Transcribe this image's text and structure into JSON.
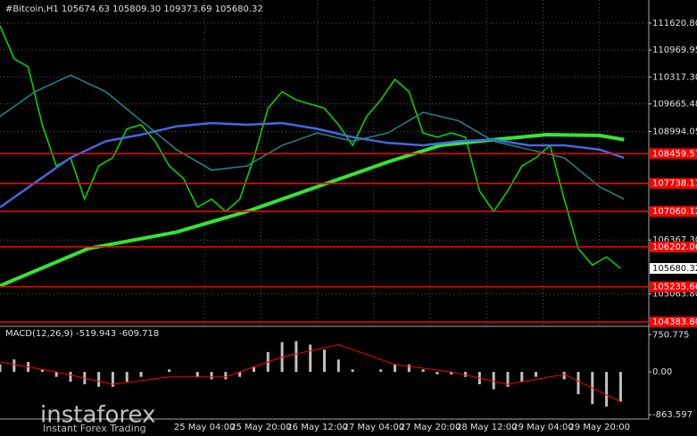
{
  "chart_data": [
    {
      "type": "line",
      "title": "#Bitcoin,H1  105674.63 105809.30 109373.69 105680.32",
      "xlim": [
        0,
        184
      ],
      "xticks": [
        {
          "value": 58,
          "label": "25 May 04:00"
        },
        {
          "value": 74,
          "label": "25 May 20:00"
        },
        {
          "value": 90,
          "label": "26 May 12:00"
        },
        {
          "value": 106,
          "label": "27 May 04:00"
        },
        {
          "value": 122,
          "label": "27 May 20:00"
        },
        {
          "value": 138,
          "label": "28 May 12:00"
        },
        {
          "value": 154,
          "label": "29 May 04:00"
        },
        {
          "value": 170,
          "label": "29 May 20:00"
        }
      ],
      "ylim": [
        104300,
        112180
      ],
      "yticks": [
        {
          "value": 111620.8,
          "label": "111620.80"
        },
        110969.95,
        {
          "value": 110317.3,
          "label": "110317.30"
        },
        109665.48,
        108994.05,
        {
          "value": 106367.3,
          "label": "106367.30"
        },
        {
          "value": 105063.8,
          "label": "105063.80"
        }
      ],
      "levels": [
        108459.57,
        107738.11,
        107060.12,
        106202.06,
        105235.66,
        {
          "value": 104383.8,
          "label": "104383.80"
        }
      ],
      "level_color": "#ff0000",
      "last_price": 105680.32,
      "grid": true,
      "series": [
        {
          "color": "#00e000",
          "line_width": 1.5,
          "x": [
            0,
            4,
            8,
            12,
            16,
            20,
            24,
            28,
            32,
            36,
            40,
            44,
            48,
            52,
            56,
            60,
            64,
            68,
            72,
            76,
            80,
            84,
            88,
            92,
            96,
            100,
            104,
            108,
            112,
            116,
            120,
            124,
            128,
            132,
            136,
            140,
            144,
            148,
            152,
            156,
            160,
            164,
            168,
            172,
            176
          ],
          "values": [
            111560,
            110760,
            110560,
            109160,
            108160,
            108360,
            107360,
            108160,
            108360,
            109060,
            109160,
            108760,
            108160,
            107860,
            107160,
            107360,
            107060,
            107360,
            108360,
            109560,
            109960,
            109760,
            109660,
            109560,
            109160,
            108660,
            109360,
            109760,
            110260,
            109960,
            108960,
            108860,
            108960,
            108860,
            107560,
            107060,
            107560,
            108160,
            108360,
            108660,
            107360,
            106160,
            105760,
            105960,
            105680
          ]
        },
        {
          "color": "#32e632",
          "line_width": 4,
          "x": [
            0,
            25,
            50,
            70,
            90,
            110,
            125,
            140,
            155,
            170,
            177
          ],
          "values": [
            105260,
            106160,
            106560,
            107060,
            107660,
            108260,
            108660,
            108800,
            108920,
            108900,
            108800
          ]
        },
        {
          "color": "#4169e1",
          "line_width": 2.5,
          "x": [
            0,
            10,
            20,
            30,
            40,
            50,
            60,
            70,
            80,
            90,
            100,
            110,
            120,
            130,
            140,
            150,
            160,
            170,
            177
          ],
          "values": [
            107160,
            107760,
            108360,
            108760,
            108920,
            109120,
            109200,
            109160,
            109200,
            109060,
            108860,
            108720,
            108660,
            108760,
            108800,
            108660,
            108660,
            108560,
            108360
          ]
        },
        {
          "color": "#1f8a8a",
          "line_width": 1.5,
          "x": [
            0,
            10,
            20,
            30,
            40,
            50,
            60,
            70,
            80,
            90,
            100,
            110,
            120,
            130,
            140,
            150,
            160,
            170,
            177
          ],
          "values": [
            109360,
            109960,
            110360,
            109960,
            109260,
            108560,
            108060,
            108160,
            108660,
            108960,
            108760,
            108960,
            109460,
            109260,
            108760,
            108560,
            108360,
            107660,
            107360
          ]
        }
      ]
    },
    {
      "type": "bar",
      "title": "MACD(12,26,9) -519.943 -609.718",
      "color": "#c0c0c0",
      "x": [
        0,
        4,
        8,
        12,
        16,
        20,
        24,
        28,
        32,
        36,
        40,
        44,
        48,
        52,
        56,
        60,
        64,
        68,
        72,
        76,
        80,
        84,
        88,
        92,
        96,
        100,
        104,
        108,
        112,
        116,
        120,
        124,
        128,
        132,
        136,
        140,
        144,
        148,
        152,
        156,
        160,
        164,
        168,
        172,
        176
      ],
      "values": [
        150,
        250,
        200,
        50,
        -100,
        -200,
        -250,
        -300,
        -300,
        -200,
        -100,
        0,
        50,
        0,
        -100,
        -150,
        -150,
        -100,
        100,
        400,
        600,
        620,
        550,
        450,
        250,
        50,
        0,
        50,
        150,
        150,
        50,
        -50,
        -50,
        -100,
        -250,
        -350,
        -300,
        -200,
        -100,
        0,
        -150,
        -450,
        -650,
        -700,
        -600
      ],
      "signal": {
        "color": "#ff0000",
        "x": [
          0,
          16,
          32,
          48,
          64,
          80,
          96,
          112,
          128,
          144,
          160,
          176
        ],
        "values": [
          200,
          0,
          -250,
          -100,
          -100,
          300,
          550,
          150,
          0,
          -250,
          -50,
          -600
        ]
      },
      "ylim": [
        -950,
        900
      ],
      "yticks": [
        750.775,
        {
          "value": 0,
          "label": "0.00"
        },
        -863.597
      ]
    }
  ],
  "watermark": {
    "brand": "instaforex",
    "tagline": "Instant Forex Trading"
  }
}
